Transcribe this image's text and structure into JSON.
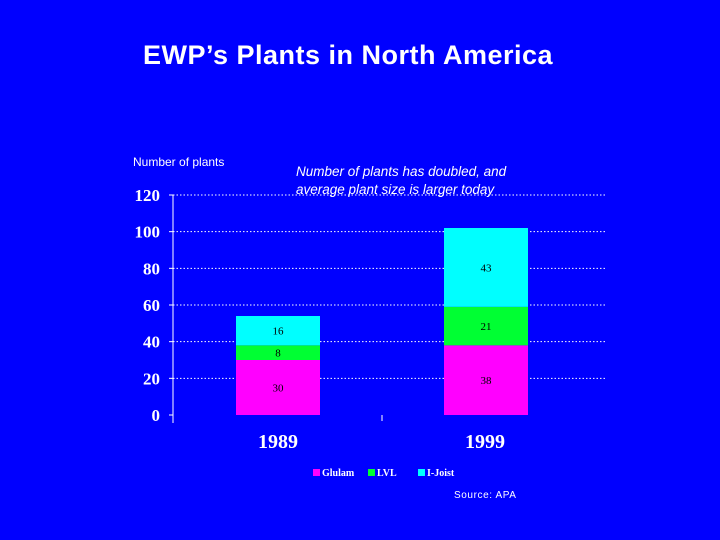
{
  "chart_data": {
    "type": "bar",
    "stacked": true,
    "title": "EWP’s Plants in North America",
    "ylabel": "Number of plants",
    "annotation": [
      "Number of plants has doubled, and",
      "average plant size is larger today"
    ],
    "source": "Source: APA",
    "categories": [
      "1989",
      "1999"
    ],
    "ylim": [
      0,
      120
    ],
    "yticks": [
      0,
      20,
      40,
      60,
      80,
      100,
      120
    ],
    "grid": true,
    "legend_position": "bottom",
    "series": [
      {
        "name": "Glulam",
        "color": "#ff00ff",
        "values": [
          30,
          38
        ]
      },
      {
        "name": "LVL",
        "color": "#00ff33",
        "values": [
          8,
          21
        ]
      },
      {
        "name": "I-Joist",
        "color": "#00ffff",
        "values": [
          16,
          43
        ]
      }
    ]
  }
}
